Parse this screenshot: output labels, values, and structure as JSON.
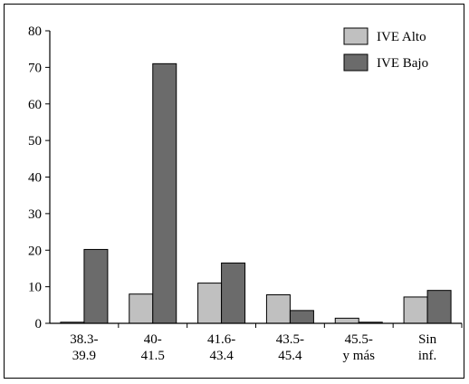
{
  "chart_data": {
    "type": "bar",
    "categories": [
      [
        "38.3-",
        "39.9"
      ],
      [
        "40-",
        "41.5"
      ],
      [
        "41.6-",
        "43.4"
      ],
      [
        "43.5-",
        "45.4"
      ],
      [
        "45.5-",
        "y más"
      ],
      [
        "Sin",
        "inf."
      ]
    ],
    "series": [
      {
        "name": "IVE Alto",
        "color": "#c0c0c0",
        "values": [
          0.3,
          8,
          11,
          7.8,
          1.4,
          7.2
        ]
      },
      {
        "name": "IVE Bajo",
        "color": "#6b6b6b",
        "values": [
          20.2,
          71,
          16.5,
          3.5,
          0.3,
          9
        ]
      }
    ],
    "ylim": [
      0,
      80
    ],
    "yticks": [
      0,
      10,
      20,
      30,
      40,
      50,
      60,
      70,
      80
    ],
    "grid": false,
    "legend_position": "top-right"
  }
}
